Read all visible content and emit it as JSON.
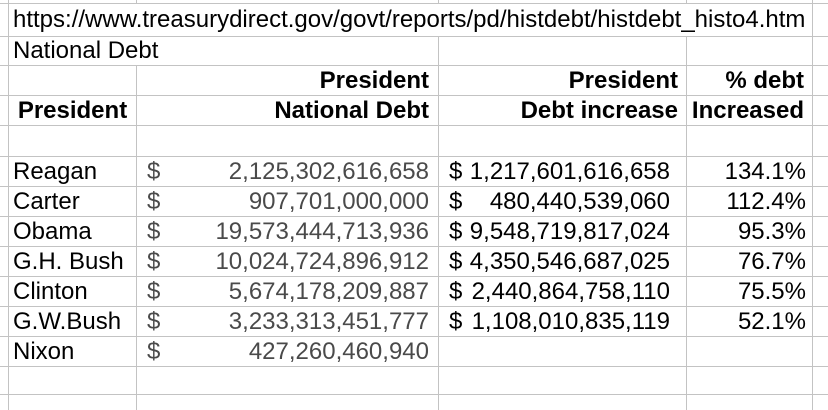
{
  "url_cell": {
    "text": "https://www.treasurydirect.gov/govt/reports/pd/histdebt/histdebt_histo4.htm"
  },
  "title_cell": {
    "text": "National Debt"
  },
  "currency": "$",
  "headers": {
    "row1": {
      "national_debt": "President",
      "debt_increase": "President",
      "pct": "% debt"
    },
    "row2": {
      "president": "President",
      "national_debt": "National Debt",
      "debt_increase": "Debt increase",
      "pct": "Increased"
    }
  },
  "rows": [
    {
      "name": "Reagan",
      "national_debt": "2,125,302,616,658",
      "debt_increase": "1,217,601,616,658",
      "pct": "134.1%"
    },
    {
      "name": "Carter",
      "national_debt": "907,701,000,000",
      "debt_increase": "480,440,539,060",
      "pct": "112.4%"
    },
    {
      "name": "Obama",
      "national_debt": "19,573,444,713,936",
      "debt_increase": "9,548,719,817,024",
      "pct": "95.3%"
    },
    {
      "name": "G.H. Bush",
      "national_debt": "10,024,724,896,912",
      "debt_increase": "4,350,546,687,025",
      "pct": "76.7%"
    },
    {
      "name": "Clinton",
      "national_debt": "5,674,178,209,887",
      "debt_increase": "2,440,864,758,110",
      "pct": "75.5%"
    },
    {
      "name": "G.W.Bush",
      "national_debt": "3,233,313,451,777",
      "debt_increase": "1,108,010,835,119",
      "pct": "52.1%"
    },
    {
      "name": "Nixon",
      "national_debt": "427,260,460,940",
      "debt_increase": "",
      "pct": ""
    }
  ],
  "colors": {
    "gridline": "#c3c3c3",
    "text": "#000000",
    "national_debt_numbers": "#4a4a4a",
    "background": "#ffffff"
  }
}
